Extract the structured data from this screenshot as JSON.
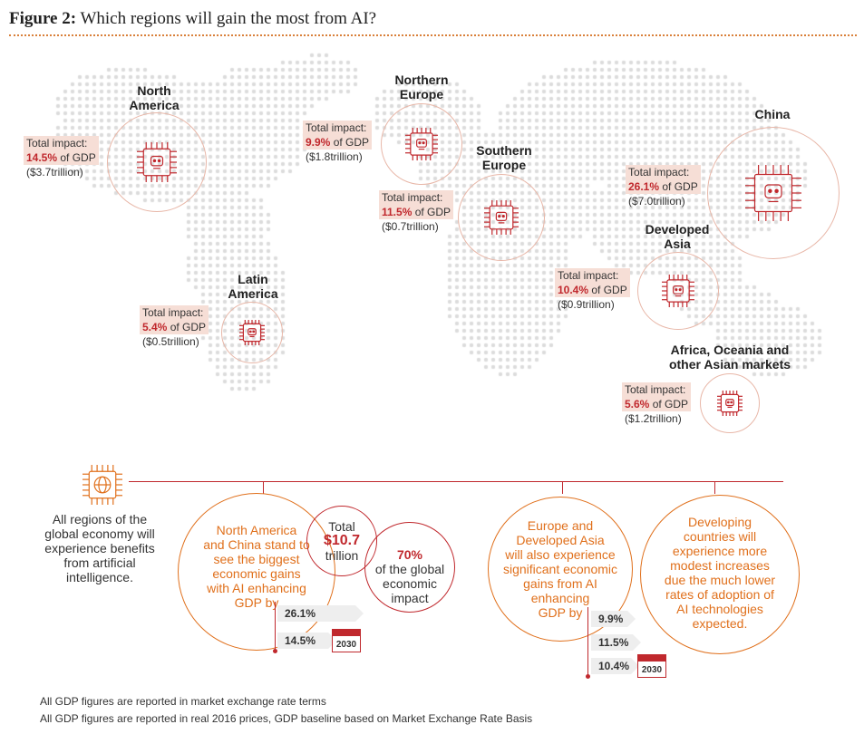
{
  "title": {
    "figure": "Figure 2:",
    "text": " Which regions will gain the most from AI?"
  },
  "regions": [
    {
      "id": "north-america",
      "name1": "North",
      "name2": "America",
      "label": "Total impact:",
      "pct": "14.5%",
      "of": " of GDP",
      "value": "($3.7trillion)"
    },
    {
      "id": "northern-europe",
      "name1": "Northern",
      "name2": "Europe",
      "label": "Total impact:",
      "pct": "9.9%",
      "of": " of GDP",
      "value": "($1.8trillion)"
    },
    {
      "id": "southern-europe",
      "name1": "Southern",
      "name2": "Europe",
      "label": "Total impact:",
      "pct": "11.5%",
      "of": " of GDP",
      "value": "($0.7trillion)"
    },
    {
      "id": "china",
      "name1": "China",
      "name2": "",
      "label": "Total impact:",
      "pct": "26.1%",
      "of": " of GDP",
      "value": "($7.0trillion)"
    },
    {
      "id": "developed-asia",
      "name1": "Developed",
      "name2": "Asia",
      "label": "Total impact:",
      "pct": "10.4%",
      "of": " of GDP",
      "value": "($0.9trillion)"
    },
    {
      "id": "latin-america",
      "name1": "Latin",
      "name2": "America",
      "label": "Total impact:",
      "pct": "5.4%",
      "of": " of GDP",
      "value": "($0.5trillion)"
    },
    {
      "id": "africa-oceania",
      "name1": "Africa, Oceania and",
      "name2": "other Asian markets",
      "label": "Total impact:",
      "pct": "5.6%",
      "of": " of GDP",
      "value": "($1.2trillion)"
    }
  ],
  "bottom": {
    "all_regions": [
      "All regions of the",
      "global economy will",
      "experience benefits",
      "from artificial",
      "intelligence."
    ],
    "na_china": [
      "North America",
      "and China stand to",
      "see the biggest",
      "economic gains",
      "with AI enhancing",
      "GDP by"
    ],
    "total": {
      "l1": "Total",
      "l2": "$10.7",
      "l3": "trillion"
    },
    "share": {
      "l1": "70%",
      "l2": "of the global",
      "l3": "economic",
      "l4": "impact"
    },
    "na_pills": [
      "26.1%",
      "14.5%"
    ],
    "europe_asia": [
      "Europe and",
      "Developed Asia",
      "will also experience",
      "significant economic",
      "gains from AI",
      "enhancing",
      "GDP by"
    ],
    "eu_pills": [
      "9.9%",
      "11.5%",
      "10.4%"
    ],
    "developing": [
      "Developing",
      "countries will",
      "experience more",
      "modest increases",
      "due the much lower",
      "rates of adoption of",
      "AI technologies",
      "expected."
    ],
    "year": "2030"
  },
  "footnotes": [
    "All GDP figures are reported in market exchange rate terms",
    "All GDP figures are reported in real 2016 prices, GDP baseline based on Market Exchange Rate Basis"
  ],
  "icons": {
    "chip": "ai-chip-icon",
    "globe": "globe-chip-icon",
    "calendar": "calendar-icon"
  },
  "colors": {
    "accent_red": "#c0282d",
    "accent_orange": "#e0701c",
    "highlight": "#f6ded6"
  }
}
